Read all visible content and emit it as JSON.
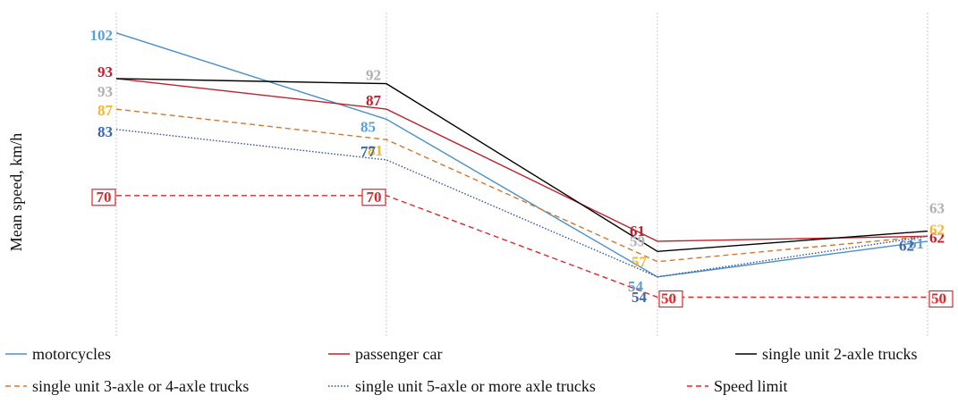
{
  "chart_data": {
    "type": "line",
    "ylabel": "Mean speed, km/h",
    "categories": [
      "",
      "",
      "",
      ""
    ],
    "ylim": [
      42,
      106
    ],
    "grid": "vertical",
    "legend_position": "bottom",
    "series": [
      {
        "name": "motorcycles",
        "values": [
          102,
          85,
          54,
          61
        ],
        "color": "#4a90c8",
        "dash": "solid",
        "label_color": "#5aa0d8"
      },
      {
        "name": "passenger car",
        "values": [
          93,
          87,
          61,
          62
        ],
        "color": "#c0202c",
        "dash": "solid",
        "label_color": "#c0202c"
      },
      {
        "name": "single unit 2-axle trucks",
        "values": [
          93,
          92,
          59,
          63
        ],
        "color": "#000000",
        "dash": "solid",
        "label_color": "#b0b0b0"
      },
      {
        "name": "single unit 3-axle or 4-axle trucks",
        "values": [
          87,
          81,
          57,
          62
        ],
        "color": "#d07830",
        "dash": "dashed",
        "label_color": "#f2b830"
      },
      {
        "name": "single unit 5-axle or more axle trucks",
        "values": [
          83,
          77,
          54,
          62
        ],
        "color": "#3050a0",
        "dash": "dotted",
        "label_color": "#3a66b0"
      },
      {
        "name": "Speed limit",
        "values": [
          70,
          70,
          50,
          50
        ],
        "color": "#e0262a",
        "dash": "dashed",
        "label_color": "#e0262a",
        "boxed": true
      }
    ]
  }
}
